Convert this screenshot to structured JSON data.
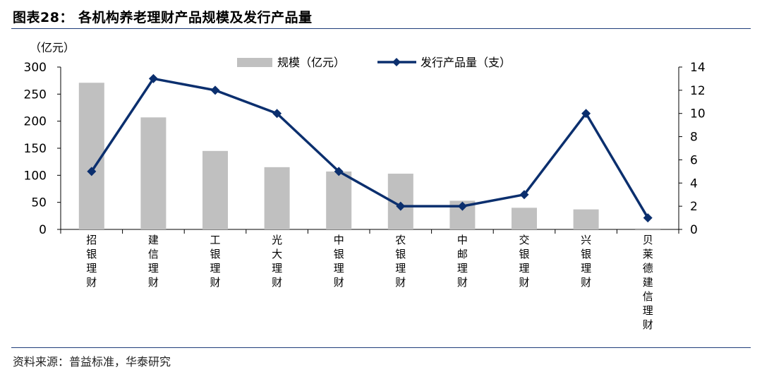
{
  "title": "图表28： 各机构养老理财产品规模及发行产品量",
  "source": "资料来源：普益标准，华泰研究",
  "colors": {
    "bar": "#c0c0c0",
    "line": "#0b2f6e",
    "rule": "#1f3d7a"
  },
  "chart_data": {
    "type": "bar",
    "title": "各机构养老理财产品规模及发行产品量",
    "y_left_unit": "（亿元）",
    "categories": [
      "招银理财",
      "建信理财",
      "工银理财",
      "光大理财",
      "中银理财",
      "农银理财",
      "中邮理财",
      "交银理财",
      "兴银理财",
      "贝莱德建信理财"
    ],
    "series": [
      {
        "name": "规模（亿元）",
        "type": "bar",
        "axis": "left",
        "values": [
          271,
          207,
          145,
          115,
          107,
          103,
          53,
          40,
          37,
          2
        ]
      },
      {
        "name": "发行产品量（支）",
        "type": "line",
        "axis": "right",
        "values": [
          5,
          13,
          12,
          10,
          5,
          2,
          2,
          3,
          10,
          1
        ]
      }
    ],
    "y_left": {
      "min": 0,
      "max": 300,
      "ticks": [
        0,
        50,
        100,
        150,
        200,
        250,
        300
      ]
    },
    "y_right": {
      "min": 0,
      "max": 14,
      "ticks": [
        0,
        2,
        4,
        6,
        8,
        10,
        12,
        14
      ]
    },
    "legend_position": "top-center",
    "grid": false
  }
}
